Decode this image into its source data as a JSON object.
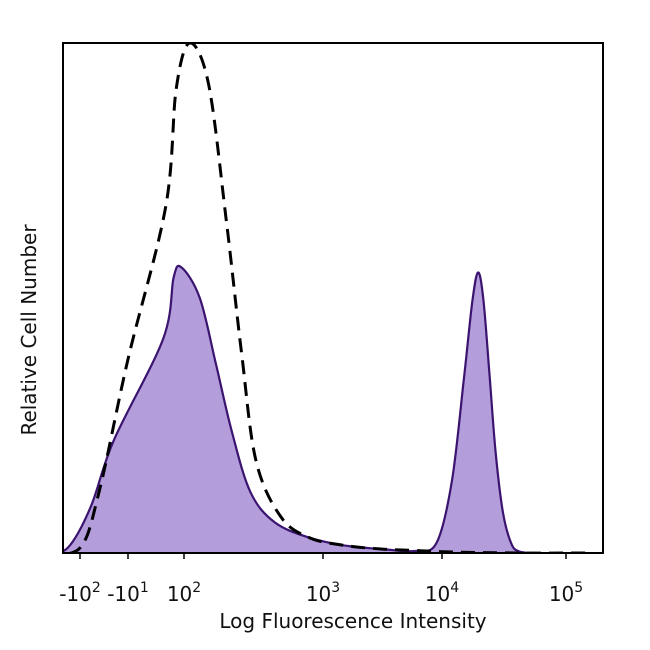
{
  "chart_data": {
    "type": "area",
    "title": "",
    "xlabel": "Log Fluorescence Intensity",
    "ylabel": "Relative Cell Number",
    "x_scale": "biexponential",
    "x_ticks": [
      {
        "label": "-10",
        "exp": "2",
        "value": -100
      },
      {
        "label": "-10",
        "exp": "1",
        "value": -10
      },
      {
        "label": "10",
        "exp": "2",
        "value": 100
      },
      {
        "label": "10",
        "exp": "3",
        "value": 1000
      },
      {
        "label": "10",
        "exp": "4",
        "value": 10000
      },
      {
        "label": "10",
        "exp": "5",
        "value": 100000
      }
    ],
    "ylim": [
      0,
      1
    ],
    "grid": false,
    "series": [
      {
        "style": "dashed-outline",
        "color": "#000000",
        "x": [
          -300,
          -100,
          -40,
          -10,
          30,
          70,
          110,
          150,
          200,
          260,
          330,
          500,
          800,
          1500,
          3000,
          6000,
          12000,
          40000,
          150000
        ],
        "y": [
          0.0,
          0.01,
          0.12,
          0.38,
          0.68,
          0.91,
          1.0,
          0.92,
          0.66,
          0.39,
          0.18,
          0.07,
          0.03,
          0.015,
          0.008,
          0.005,
          0.002,
          0.0,
          0.0
        ]
      },
      {
        "style": "filled",
        "color": "#b39ddb",
        "stroke": "#3b1470",
        "x": [
          -300,
          -150,
          -60,
          -20,
          20,
          60,
          90,
          130,
          170,
          220,
          300,
          450,
          800,
          1500,
          3000,
          6000,
          9000,
          12000,
          15000,
          17500,
          19500,
          21500,
          24000,
          27000,
          31000,
          36000,
          42000,
          60000,
          150000
        ],
        "y": [
          0.0,
          0.01,
          0.09,
          0.22,
          0.42,
          0.54,
          0.56,
          0.5,
          0.37,
          0.24,
          0.12,
          0.06,
          0.03,
          0.015,
          0.008,
          0.004,
          0.02,
          0.14,
          0.34,
          0.49,
          0.55,
          0.5,
          0.36,
          0.2,
          0.08,
          0.02,
          0.003,
          0.0,
          0.0
        ]
      }
    ]
  }
}
